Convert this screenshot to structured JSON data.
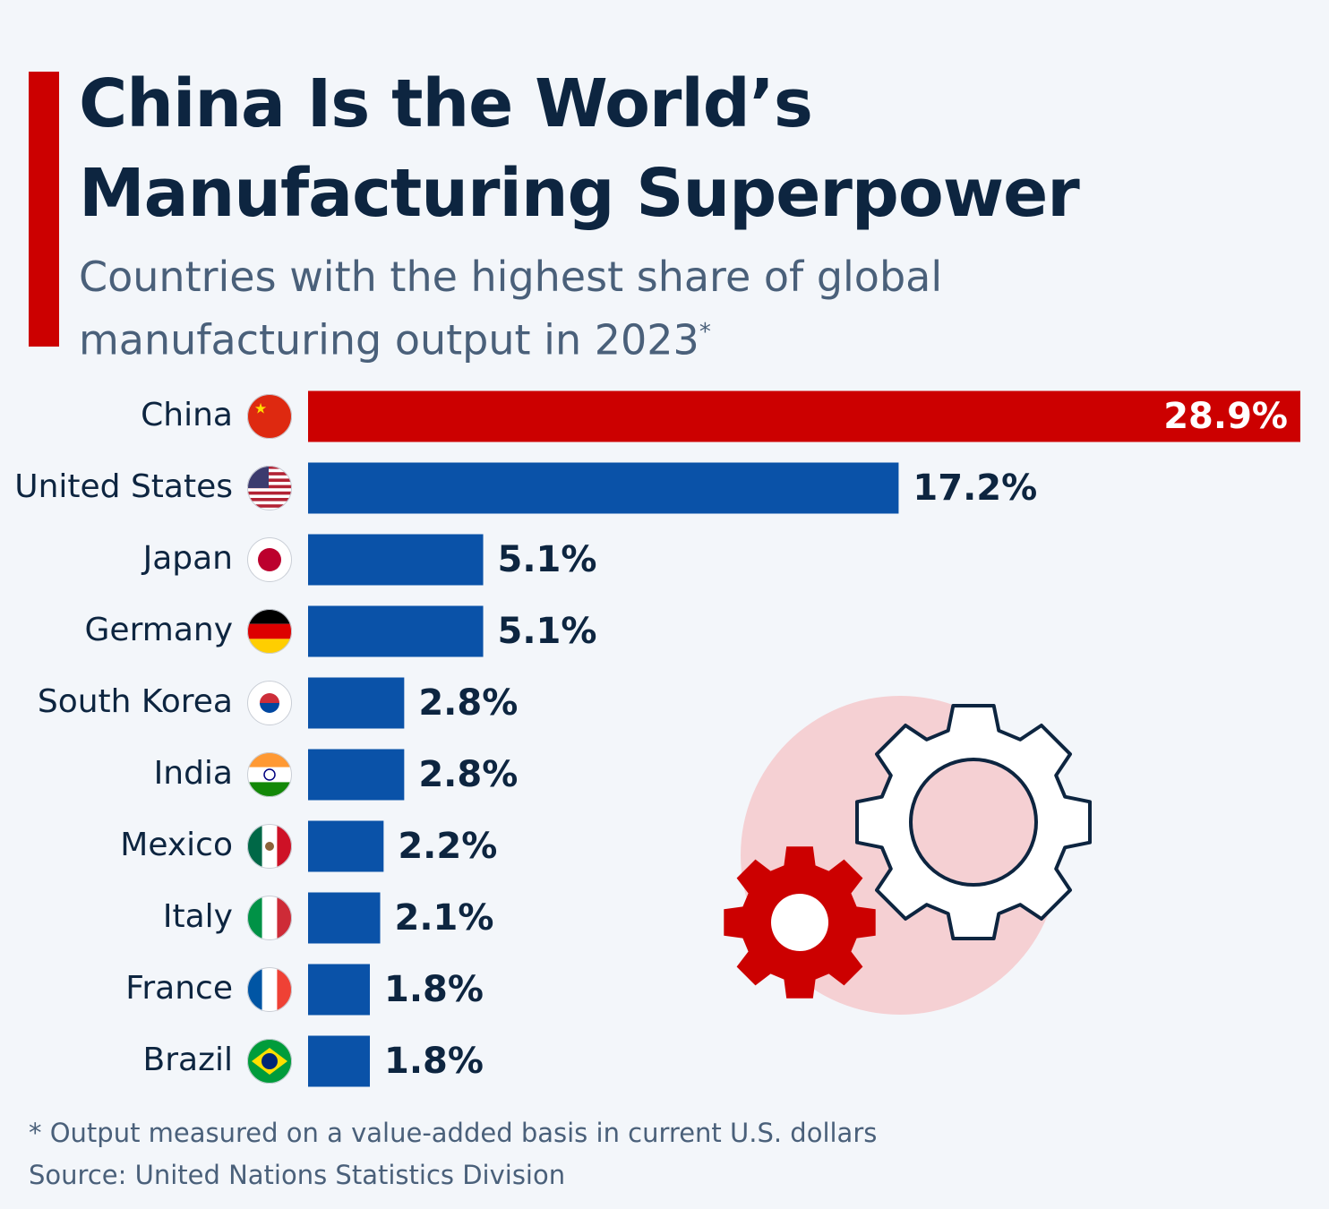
{
  "chart_data": {
    "type": "bar",
    "title": "China Is the World’s Manufacturing Superpower",
    "subtitle": "Countries with the highest share of global manufacturing output in 2023",
    "subtitle_mark": "*",
    "categories": [
      "China",
      "United States",
      "Japan",
      "Germany",
      "South Korea",
      "India",
      "Mexico",
      "Italy",
      "France",
      "Brazil"
    ],
    "values": [
      28.9,
      17.2,
      5.1,
      5.1,
      2.8,
      2.8,
      2.2,
      2.1,
      1.8,
      1.8
    ],
    "value_labels": [
      "28.9%",
      "17.2%",
      "5.1%",
      "5.1%",
      "2.8%",
      "2.8%",
      "2.2%",
      "2.1%",
      "1.8%",
      "1.8%"
    ],
    "colors": [
      "#cc0000",
      "#0a52a8",
      "#0a52a8",
      "#0a52a8",
      "#0a52a8",
      "#0a52a8",
      "#0a52a8",
      "#0a52a8",
      "#0a52a8",
      "#0a52a8"
    ],
    "footnote": "* Output measured on a value-added basis in current U.S. dollars",
    "source": "Source: United Nations Statistics Division"
  }
}
